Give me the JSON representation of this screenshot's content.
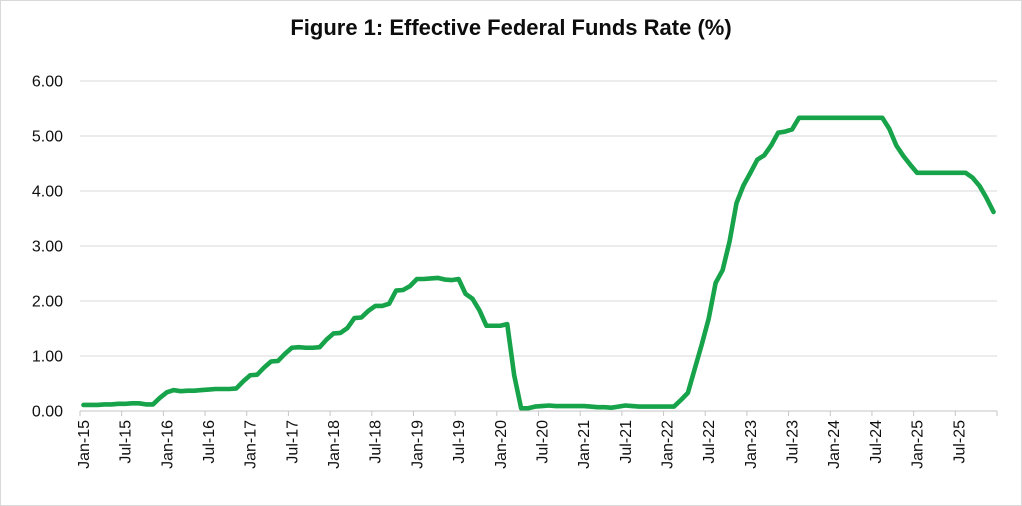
{
  "chart_data": {
    "type": "line",
    "title": "Figure 1: Effective Federal Funds Rate (%)",
    "xlabel": "",
    "ylabel": "",
    "ylim": [
      0,
      6
    ],
    "grid": true,
    "legend_position": "none",
    "y_tick_labels": [
      "6.00",
      "5.00",
      "4.00",
      "3.00",
      "2.00",
      "1.00",
      "0.00"
    ],
    "x_tick_labels": [
      "Jan-15",
      "Jul-15",
      "Jan-16",
      "Jul-16",
      "Jan-17",
      "Jul-17",
      "Jan-18",
      "Jul-18",
      "Jan-19",
      "Jul-19",
      "Jan-20",
      "Jul-20",
      "Jan-21",
      "Jul-21",
      "Jan-22",
      "Jul-22",
      "Jan-23",
      "Jul-23",
      "Jan-24",
      "Jul-24",
      "Jan-25",
      "Jul-25"
    ],
    "x": [
      "Jan-15",
      "Feb-15",
      "Mar-15",
      "Apr-15",
      "May-15",
      "Jun-15",
      "Jul-15",
      "Aug-15",
      "Sep-15",
      "Oct-15",
      "Nov-15",
      "Dec-15",
      "Jan-16",
      "Feb-16",
      "Mar-16",
      "Apr-16",
      "May-16",
      "Jun-16",
      "Jul-16",
      "Aug-16",
      "Sep-16",
      "Oct-16",
      "Nov-16",
      "Dec-16",
      "Jan-17",
      "Feb-17",
      "Mar-17",
      "Apr-17",
      "May-17",
      "Jun-17",
      "Jul-17",
      "Aug-17",
      "Sep-17",
      "Oct-17",
      "Nov-17",
      "Dec-17",
      "Jan-18",
      "Feb-18",
      "Mar-18",
      "Apr-18",
      "May-18",
      "Jun-18",
      "Jul-18",
      "Aug-18",
      "Sep-18",
      "Oct-18",
      "Nov-18",
      "Dec-18",
      "Jan-19",
      "Feb-19",
      "Mar-19",
      "Apr-19",
      "May-19",
      "Jun-19",
      "Jul-19",
      "Aug-19",
      "Sep-19",
      "Oct-19",
      "Nov-19",
      "Dec-19",
      "Jan-20",
      "Feb-20",
      "Mar-20",
      "Apr-20",
      "May-20",
      "Jun-20",
      "Jul-20",
      "Aug-20",
      "Sep-20",
      "Oct-20",
      "Nov-20",
      "Dec-20",
      "Jan-21",
      "Feb-21",
      "Mar-21",
      "Apr-21",
      "May-21",
      "Jun-21",
      "Jul-21",
      "Aug-21",
      "Sep-21",
      "Oct-21",
      "Nov-21",
      "Dec-21",
      "Jan-22",
      "Feb-22",
      "Mar-22",
      "Apr-22",
      "May-22",
      "Jun-22",
      "Jul-22",
      "Aug-22",
      "Sep-22",
      "Oct-22",
      "Nov-22",
      "Dec-22",
      "Jan-23",
      "Feb-23",
      "Mar-23",
      "Apr-23",
      "May-23",
      "Jun-23",
      "Jul-23",
      "Aug-23",
      "Sep-23",
      "Oct-23",
      "Nov-23",
      "Dec-23",
      "Jan-24",
      "Feb-24",
      "Mar-24",
      "Apr-24",
      "May-24",
      "Jun-24",
      "Jul-24",
      "Aug-24",
      "Sep-24",
      "Oct-24",
      "Nov-24",
      "Dec-24",
      "Jan-25",
      "Feb-25",
      "Mar-25",
      "Apr-25",
      "May-25",
      "Jun-25",
      "Jul-25",
      "Aug-25",
      "Sep-25",
      "Oct-25",
      "Nov-25",
      "Dec-25"
    ],
    "series": [
      {
        "name": "Effective Federal Funds Rate (%)",
        "values": [
          0.11,
          0.11,
          0.11,
          0.12,
          0.12,
          0.13,
          0.13,
          0.14,
          0.14,
          0.12,
          0.12,
          0.24,
          0.34,
          0.38,
          0.36,
          0.37,
          0.37,
          0.38,
          0.39,
          0.4,
          0.4,
          0.4,
          0.41,
          0.54,
          0.65,
          0.66,
          0.79,
          0.9,
          0.91,
          1.04,
          1.15,
          1.16,
          1.15,
          1.15,
          1.16,
          1.3,
          1.41,
          1.42,
          1.51,
          1.69,
          1.7,
          1.82,
          1.91,
          1.91,
          1.95,
          2.19,
          2.2,
          2.27,
          2.4,
          2.4,
          2.41,
          2.42,
          2.39,
          2.38,
          2.4,
          2.13,
          2.04,
          1.83,
          1.55,
          1.55,
          1.55,
          1.58,
          0.65,
          0.05,
          0.05,
          0.08,
          0.09,
          0.1,
          0.09,
          0.09,
          0.09,
          0.09,
          0.09,
          0.08,
          0.07,
          0.07,
          0.06,
          0.08,
          0.1,
          0.09,
          0.08,
          0.08,
          0.08,
          0.08,
          0.08,
          0.08,
          0.2,
          0.33,
          0.77,
          1.21,
          1.68,
          2.33,
          2.56,
          3.08,
          3.78,
          4.1,
          4.33,
          4.57,
          4.65,
          4.83,
          5.06,
          5.08,
          5.12,
          5.33,
          5.33,
          5.33,
          5.33,
          5.33,
          5.33,
          5.33,
          5.33,
          5.33,
          5.33,
          5.33,
          5.33,
          5.33,
          5.13,
          4.83,
          4.64,
          4.48,
          4.33,
          4.33,
          4.33,
          4.33,
          4.33,
          4.33,
          4.33,
          4.33,
          4.24,
          4.09,
          3.87,
          3.62
        ]
      }
    ],
    "colors": {
      "line": "#16a34a",
      "gridline": "#dadada",
      "axis": "#c6c6c6",
      "label_text": "#0f0f0f",
      "title_text": "#0d0d0d",
      "background": "#ffffff",
      "border": "#d9d9d9"
    }
  }
}
